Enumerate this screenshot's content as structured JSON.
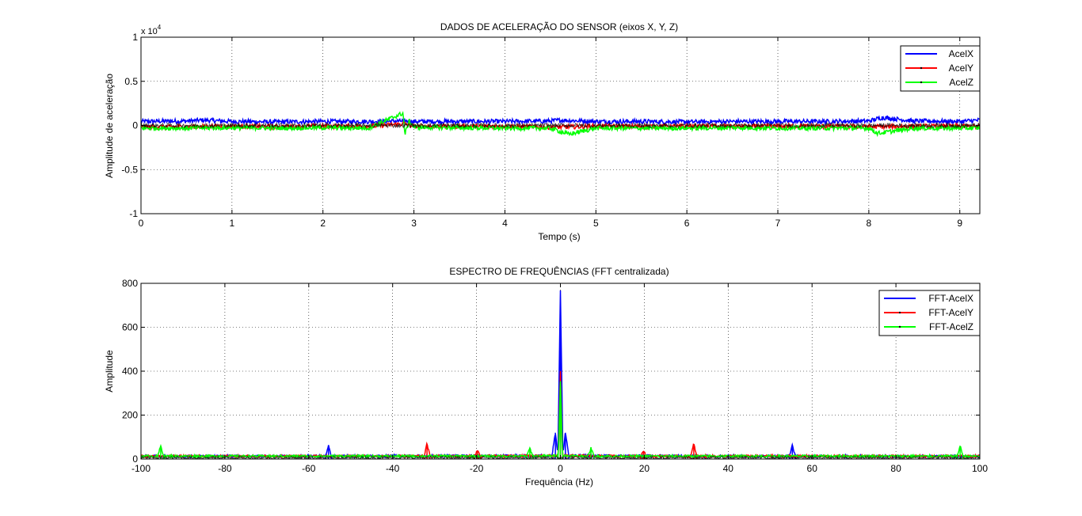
{
  "figure": {
    "background": "#ffffff"
  },
  "chart_data": [
    {
      "type": "line",
      "title": "DADOS DE ACELERAÇÃO DO SENSOR (eixos X, Y, Z)",
      "xlabel": "Tempo (s)",
      "ylabel": "Amplitude de aceleração",
      "exponent_label": "x 10",
      "exponent_power": "4",
      "xlim": [
        0,
        9.22
      ],
      "ylim": [
        -1,
        1
      ],
      "xticks": [
        0,
        1,
        2,
        3,
        4,
        5,
        6,
        7,
        8,
        9
      ],
      "xtick_labels": [
        "0",
        "1",
        "2",
        "3",
        "4",
        "5",
        "6",
        "7",
        "8",
        "9"
      ],
      "yticks": [
        -1,
        -0.5,
        0,
        0.5,
        1
      ],
      "ytick_labels": [
        "-1",
        "-0.5",
        "0",
        "0.5",
        "1"
      ],
      "grid": true,
      "legend_position": "top-right",
      "series": [
        {
          "name": "AcelX",
          "color": "#0000ff",
          "x": [
            0,
            0.5,
            0.7,
            1.0,
            1.5,
            2.0,
            2.5,
            2.9,
            3.0,
            3.5,
            4.0,
            4.5,
            4.6,
            5.0,
            5.5,
            6.0,
            6.5,
            7.0,
            7.5,
            8.0,
            8.15,
            8.5,
            9.0,
            9.22
          ],
          "y": [
            0.045,
            0.05,
            0.06,
            0.045,
            0.04,
            0.045,
            0.045,
            0.05,
            0.045,
            0.045,
            0.045,
            0.05,
            0.06,
            0.045,
            0.045,
            0.04,
            0.045,
            0.045,
            0.045,
            0.05,
            0.09,
            0.05,
            0.045,
            0.06
          ]
        },
        {
          "name": "AcelY",
          "color": "#ff0000",
          "x": [
            0,
            0.5,
            1.0,
            1.5,
            2.0,
            2.5,
            2.9,
            3.0,
            3.5,
            4.0,
            4.5,
            5.0,
            5.5,
            6.0,
            6.5,
            7.0,
            7.5,
            8.0,
            8.5,
            9.0,
            9.22
          ],
          "y": [
            -0.02,
            -0.015,
            -0.01,
            -0.015,
            -0.01,
            -0.01,
            0.02,
            -0.01,
            -0.01,
            -0.01,
            -0.02,
            -0.01,
            -0.01,
            -0.01,
            -0.01,
            -0.01,
            -0.01,
            -0.015,
            -0.01,
            -0.01,
            -0.015
          ]
        },
        {
          "name": "AcelZ",
          "color": "#00ff00",
          "x": [
            0,
            0.5,
            1.0,
            1.5,
            2.0,
            2.5,
            2.88,
            2.9,
            2.95,
            3.0,
            3.5,
            4.0,
            4.5,
            4.7,
            5.0,
            5.5,
            6.0,
            6.5,
            7.0,
            7.5,
            8.0,
            8.1,
            8.5,
            9.0,
            9.22
          ],
          "y": [
            -0.03,
            -0.03,
            -0.025,
            -0.03,
            -0.025,
            -0.03,
            0.14,
            -0.1,
            0.05,
            -0.02,
            -0.025,
            -0.03,
            -0.03,
            -0.1,
            -0.03,
            -0.03,
            -0.03,
            -0.025,
            -0.03,
            -0.03,
            -0.03,
            -0.09,
            -0.03,
            -0.03,
            -0.03
          ]
        }
      ]
    },
    {
      "type": "line",
      "title": "ESPECTRO DE FREQUÊNCIAS (FFT centralizada)",
      "xlabel": "Frequência (Hz)",
      "ylabel": "Amplitude",
      "xlim": [
        -100,
        100
      ],
      "ylim": [
        0,
        800
      ],
      "xticks": [
        -100,
        -80,
        -60,
        -40,
        -20,
        0,
        20,
        40,
        60,
        80,
        100
      ],
      "xtick_labels": [
        "-100",
        "-80",
        "-60",
        "-40",
        "-20",
        "0",
        "20",
        "40",
        "60",
        "80",
        "100"
      ],
      "yticks": [
        0,
        200,
        400,
        600,
        800
      ],
      "ytick_labels": [
        "0",
        "200",
        "400",
        "600",
        "800"
      ],
      "grid": true,
      "legend_position": "top-right",
      "series": [
        {
          "name": "FFT-AcelX",
          "color": "#0000ff",
          "x": [
            -100,
            -56,
            -55.3,
            -54.6,
            -2,
            -1.2,
            -0.6,
            0,
            0.6,
            1.2,
            2,
            54.6,
            55.3,
            56,
            100
          ],
          "y": [
            8,
            8,
            60,
            8,
            10,
            120,
            10,
            765,
            10,
            120,
            10,
            8,
            60,
            8,
            8
          ]
        },
        {
          "name": "FFT-AcelY",
          "color": "#ff0000",
          "x": [
            -100,
            -32.5,
            -31.8,
            -31.1,
            -20.5,
            -19.8,
            -19.1,
            -0.5,
            0,
            0.5,
            19.1,
            19.8,
            20.5,
            31.1,
            31.8,
            32.5,
            100
          ],
          "y": [
            8,
            8,
            65,
            8,
            8,
            35,
            8,
            10,
            390,
            10,
            8,
            35,
            8,
            8,
            65,
            8,
            8
          ]
        },
        {
          "name": "FFT-AcelZ",
          "color": "#00ff00",
          "x": [
            -100,
            -96,
            -95.3,
            -94.6,
            -8,
            -7.3,
            -6.6,
            -0.5,
            0,
            0.5,
            6.6,
            7.3,
            8,
            94.6,
            95.3,
            96,
            100
          ],
          "y": [
            8,
            8,
            55,
            8,
            8,
            45,
            8,
            10,
            350,
            10,
            8,
            45,
            8,
            8,
            55,
            8,
            8
          ]
        }
      ]
    }
  ]
}
